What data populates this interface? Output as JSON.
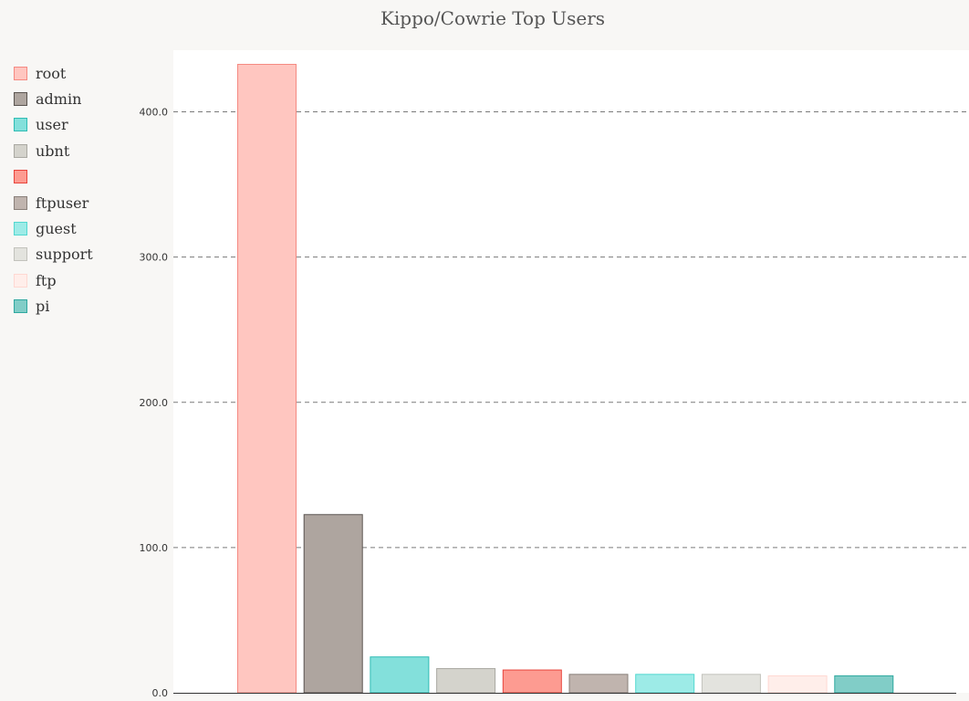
{
  "chart_data": {
    "type": "bar",
    "title": "Kippo/Cowrie Top Users",
    "xlabel": "",
    "ylabel": "",
    "ylim": [
      0,
      440
    ],
    "yticks": [
      "0.0",
      "100.0",
      "200.0",
      "300.0",
      "400.0"
    ],
    "grid": "horizontal dashed",
    "legend_placement": "left",
    "categories": [
      "root",
      "admin",
      "user",
      "ubnt",
      "",
      "ftpuser",
      "guest",
      "support",
      "ftp",
      "pi"
    ],
    "values": [
      433,
      123,
      25,
      17,
      16,
      13,
      13,
      13,
      12,
      12
    ],
    "fill_colors": [
      "#ffc6c0",
      "#aea59f",
      "#83e0db",
      "#d4d3cc",
      "#fd9b91",
      "#c0b4ae",
      "#9debe7",
      "#e3e3de",
      "#ffeeea",
      "#81cdc7"
    ],
    "border_colors": [
      "#f58a82",
      "#5a5450",
      "#2fbcb4",
      "#aaa9a2",
      "#e8443c",
      "#8a807a",
      "#53d8d0",
      "#c2c2bc",
      "#ffd8d2",
      "#2fa89f"
    ]
  }
}
